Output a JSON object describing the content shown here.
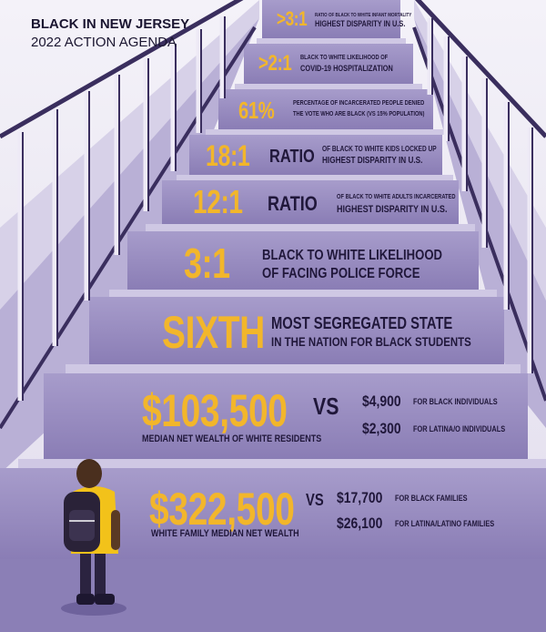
{
  "header": {
    "title": "BLACK IN NEW JERSEY",
    "subtitle": "2022 ACTION AGENDA"
  },
  "steps": [
    {
      "stat": ">3:1",
      "line1": "RATIO OF BLACK TO WHITE INFANT MORTALITY",
      "line2": "HIGHEST DISPARITY IN U.S."
    },
    {
      "stat": ">2:1",
      "line1": "BLACK TO WHITE LIKELIHOOD OF",
      "line2": "COVID-19 HOSPITALIZATION"
    },
    {
      "stat": "61%",
      "line1": "PERCENTAGE OF INCARCERATED PEOPLE DENIED",
      "line2": "THE VOTE WHO ARE BLACK (VS 15% POPULATION)"
    },
    {
      "stat": "18:1",
      "word": "RATIO",
      "line1": "OF BLACK TO WHITE KIDS LOCKED UP",
      "line2": "HIGHEST DISPARITY IN U.S."
    },
    {
      "stat": "12:1",
      "word": "RATIO",
      "line1": "OF BLACK TO WHITE ADULTS INCARCERATED",
      "line2": "HIGHEST DISPARITY IN U.S."
    },
    {
      "stat": "3:1",
      "line1": "BLACK TO WHITE LIKELIHOOD",
      "line2": "OF FACING POLICE FORCE"
    },
    {
      "stat": "SIXTH",
      "line1": "MOST SEGREGATED STATE",
      "line2": "IN THE NATION FOR BLACK STUDENTS"
    },
    {
      "stat": "$103,500",
      "vs": "VS",
      "caption": "MEDIAN NET WEALTH OF WHITE RESIDENTS",
      "compare": [
        {
          "amount": "$4,900",
          "label": "FOR BLACK INDIVIDUALS"
        },
        {
          "amount": "$2,300",
          "label": "FOR LATINA/O INDIVIDUALS"
        }
      ]
    },
    {
      "stat": "$322,500",
      "vs": "VS",
      "caption": "WHITE FAMILY MEDIAN NET WEALTH",
      "compare": [
        {
          "amount": "$17,700",
          "label": "FOR BLACK FAMILIES"
        },
        {
          "amount": "$26,100",
          "label": "FOR LATINA/LATINO FAMILIES"
        }
      ]
    }
  ],
  "colors": {
    "accent": "#f2b62b",
    "stair_face": "#8f83b8",
    "stair_tread": "#c9c1e0",
    "railing": "#3a2e5e",
    "text_dark": "#20173a"
  }
}
